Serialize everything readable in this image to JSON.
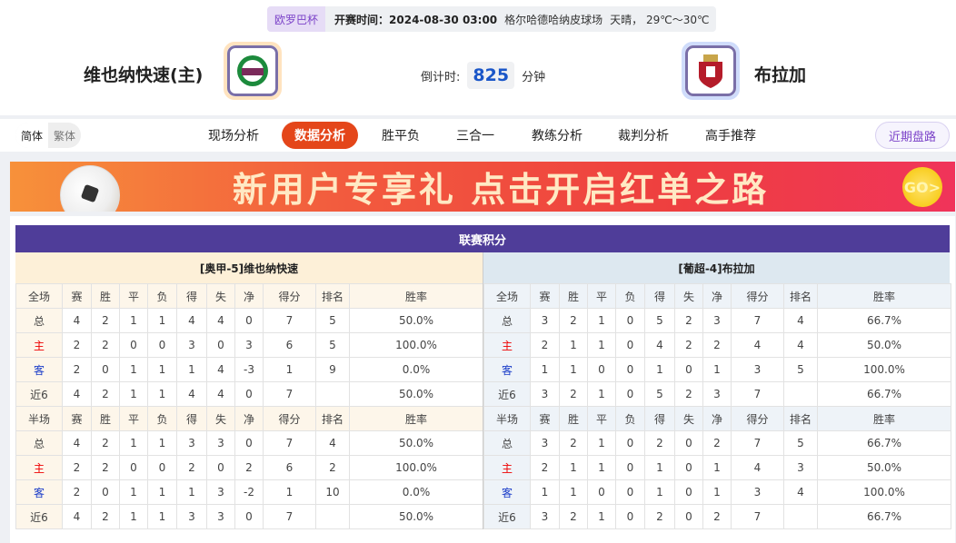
{
  "header": {
    "competition": "欧罗巴杯",
    "kickoff_label": "开赛时间：2024-08-30 03:00",
    "venue": "格尔哈德哈纳皮球场",
    "weather": "天晴， 29℃～30℃",
    "home_team": "维也纳快速(主)",
    "away_team": "布拉加",
    "countdown_label": "倒计时:",
    "countdown_value": "825",
    "countdown_unit": "分钟"
  },
  "nav": {
    "lang": [
      "简体",
      "繁体"
    ],
    "tabs": [
      "现场分析",
      "数据分析",
      "胜平负",
      "三合一",
      "教练分析",
      "裁判分析",
      "高手推荐"
    ],
    "active_tab": 1,
    "recent": "近期盘路"
  },
  "banner": {
    "text": "新用户专享礼  点击开启红单之路",
    "go": "GO>"
  },
  "standings": {
    "title": "联赛积分",
    "home": {
      "name": "[奥甲-5]维也纳快速",
      "full_header": [
        "全场",
        "赛",
        "胜",
        "平",
        "负",
        "得",
        "失",
        "净",
        "得分",
        "排名",
        "胜率"
      ],
      "full": [
        [
          "总",
          "4",
          "2",
          "1",
          "1",
          "4",
          "4",
          "0",
          "7",
          "5",
          "50.0%"
        ],
        [
          "主",
          "2",
          "2",
          "0",
          "0",
          "3",
          "0",
          "3",
          "6",
          "5",
          "100.0%"
        ],
        [
          "客",
          "2",
          "0",
          "1",
          "1",
          "1",
          "4",
          "-3",
          "1",
          "9",
          "0.0%"
        ],
        [
          "近6",
          "4",
          "2",
          "1",
          "1",
          "4",
          "4",
          "0",
          "7",
          "",
          "50.0%"
        ]
      ],
      "half_header": [
        "半场",
        "赛",
        "胜",
        "平",
        "负",
        "得",
        "失",
        "净",
        "得分",
        "排名",
        "胜率"
      ],
      "half": [
        [
          "总",
          "4",
          "2",
          "1",
          "1",
          "3",
          "3",
          "0",
          "7",
          "4",
          "50.0%"
        ],
        [
          "主",
          "2",
          "2",
          "0",
          "0",
          "2",
          "0",
          "2",
          "6",
          "2",
          "100.0%"
        ],
        [
          "客",
          "2",
          "0",
          "1",
          "1",
          "1",
          "3",
          "-2",
          "1",
          "10",
          "0.0%"
        ],
        [
          "近6",
          "4",
          "2",
          "1",
          "1",
          "3",
          "3",
          "0",
          "7",
          "",
          "50.0%"
        ]
      ]
    },
    "away": {
      "name": "[葡超-4]布拉加",
      "full_header": [
        "全场",
        "赛",
        "胜",
        "平",
        "负",
        "得",
        "失",
        "净",
        "得分",
        "排名",
        "胜率"
      ],
      "full": [
        [
          "总",
          "3",
          "2",
          "1",
          "0",
          "5",
          "2",
          "3",
          "7",
          "4",
          "66.7%"
        ],
        [
          "主",
          "2",
          "1",
          "1",
          "0",
          "4",
          "2",
          "2",
          "4",
          "4",
          "50.0%"
        ],
        [
          "客",
          "1",
          "1",
          "0",
          "0",
          "1",
          "0",
          "1",
          "3",
          "5",
          "100.0%"
        ],
        [
          "近6",
          "3",
          "2",
          "1",
          "0",
          "5",
          "2",
          "3",
          "7",
          "",
          "66.7%"
        ]
      ],
      "half_header": [
        "半场",
        "赛",
        "胜",
        "平",
        "负",
        "得",
        "失",
        "净",
        "得分",
        "排名",
        "胜率"
      ],
      "half": [
        [
          "总",
          "3",
          "2",
          "1",
          "0",
          "2",
          "0",
          "2",
          "7",
          "5",
          "66.7%"
        ],
        [
          "主",
          "2",
          "1",
          "1",
          "0",
          "1",
          "0",
          "1",
          "4",
          "3",
          "50.0%"
        ],
        [
          "客",
          "1",
          "1",
          "0",
          "0",
          "1",
          "0",
          "1",
          "3",
          "4",
          "100.0%"
        ],
        [
          "近6",
          "3",
          "2",
          "1",
          "0",
          "2",
          "0",
          "2",
          "7",
          "",
          "66.7%"
        ]
      ]
    }
  },
  "colors": {
    "accent": "#e4461a",
    "title_bar": "#4f3d99",
    "home_label": "#ee0000",
    "away_label": "#1a3cc8"
  }
}
